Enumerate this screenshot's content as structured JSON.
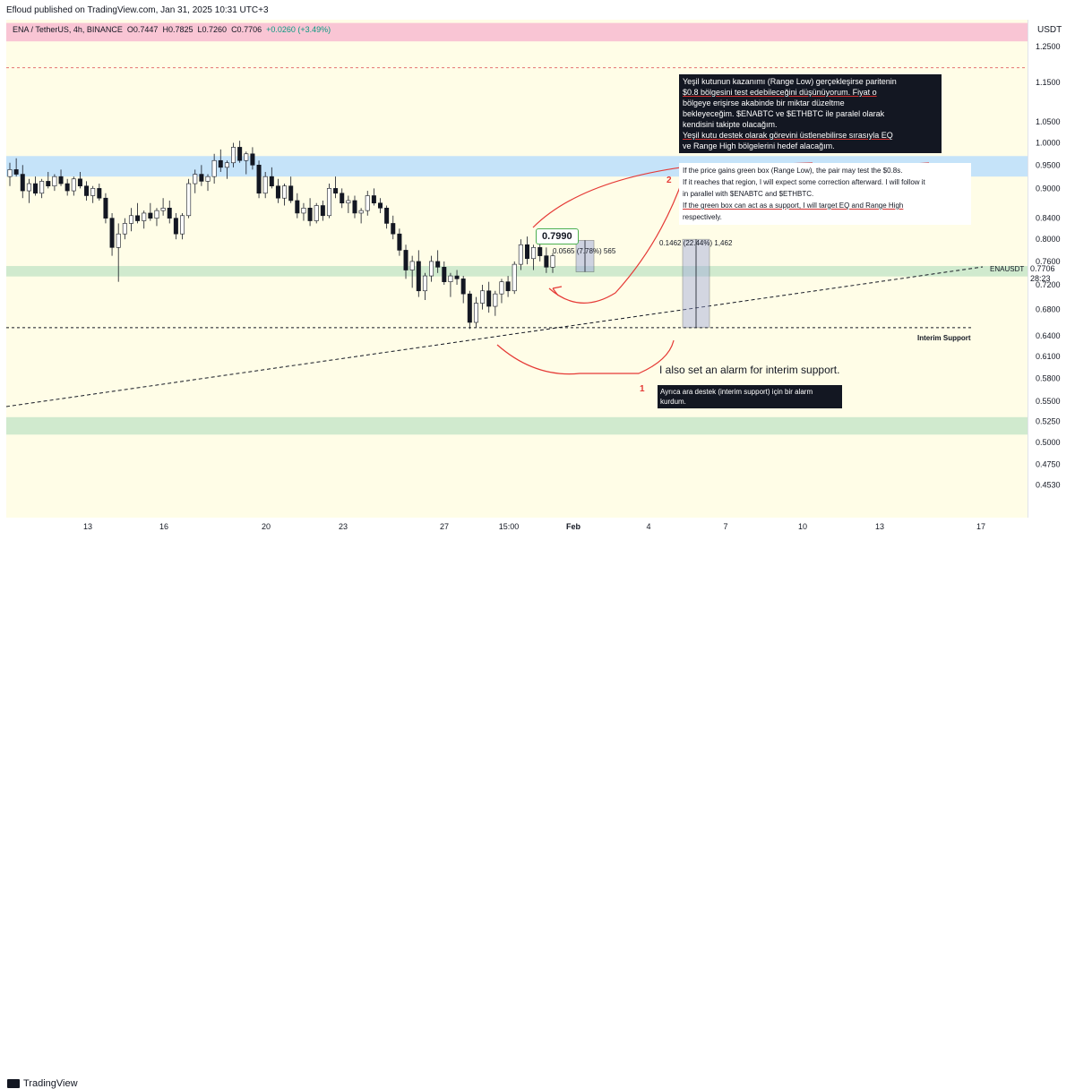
{
  "header": {
    "published": "Efloud published on TradingView.com, Jan 31, 2025 10:31 UTC+3"
  },
  "footer": {
    "brand": "TradingView"
  },
  "ohlc": {
    "symbol": "ENA / TetherUS, 4h, BINANCE",
    "open": "O0.7447",
    "high": "H0.7825",
    "low": "L0.7260",
    "close": "C0.7706",
    "change": "+0.0260 (+3.49%)"
  },
  "axis": {
    "currency": "USDT"
  },
  "colors": {
    "background": "#fffde7",
    "up": "#089981",
    "down": "#131722",
    "blue_zone": "#bbdefb",
    "green_zone": "#c8e6c9",
    "red_zone": "#f8bbd0",
    "annotation": "#e53935"
  },
  "chart_data": {
    "type": "candlestick",
    "symbol": "ENA/USDT",
    "interval": "4h",
    "y_scale": "log",
    "ylim": [
      0.42,
      1.33
    ],
    "y_ticks": [
      "1.2500",
      "1.1500",
      "1.0500",
      "1.0000",
      "0.9500",
      "0.9000",
      "0.8400",
      "0.8000",
      "0.7600",
      "0.7200",
      "0.6800",
      "0.6400",
      "0.6100",
      "0.5800",
      "0.5500",
      "0.5250",
      "0.5000",
      "0.4750",
      "0.4530"
    ],
    "x_ticks": [
      "13",
      "16",
      "20",
      "23",
      "27",
      "15:00",
      "Feb",
      "4",
      "7",
      "10",
      "13",
      "17"
    ],
    "last_price": "0.7706",
    "countdown": "28:23",
    "symbol_label": "ENAUSDT",
    "zones": [
      {
        "name": "resistance",
        "color": "red",
        "low": 1.265,
        "high": 1.32
      },
      {
        "name": "range-high",
        "color": "blue",
        "low": 0.925,
        "high": 0.97
      },
      {
        "name": "range-low",
        "color": "green",
        "low": 0.734,
        "high": 0.752
      },
      {
        "name": "lower-support",
        "color": "green",
        "low": 0.509,
        "high": 0.53
      }
    ],
    "levels": [
      {
        "name": "upper-dashed",
        "value": 1.19
      },
      {
        "name": "interim-support",
        "value": 0.652,
        "label": "Interim Support"
      }
    ],
    "price_tag": "0.7990",
    "measure_small": {
      "text": "0.0565 (7.78%) 565"
    },
    "measure_large": {
      "text": "0.1462 (22.44%) 1,462"
    },
    "ohlc_series": [
      [
        0.925,
        0.955,
        0.905,
        0.94
      ],
      [
        0.94,
        0.965,
        0.925,
        0.93
      ],
      [
        0.93,
        0.95,
        0.88,
        0.895
      ],
      [
        0.895,
        0.92,
        0.87,
        0.91
      ],
      [
        0.91,
        0.925,
        0.885,
        0.89
      ],
      [
        0.89,
        0.92,
        0.88,
        0.915
      ],
      [
        0.915,
        0.935,
        0.9,
        0.905
      ],
      [
        0.905,
        0.93,
        0.895,
        0.925
      ],
      [
        0.925,
        0.94,
        0.905,
        0.91
      ],
      [
        0.91,
        0.92,
        0.885,
        0.895
      ],
      [
        0.895,
        0.925,
        0.885,
        0.92
      ],
      [
        0.92,
        0.935,
        0.9,
        0.905
      ],
      [
        0.905,
        0.915,
        0.875,
        0.885
      ],
      [
        0.885,
        0.905,
        0.87,
        0.9
      ],
      [
        0.9,
        0.91,
        0.875,
        0.88
      ],
      [
        0.88,
        0.89,
        0.83,
        0.84
      ],
      [
        0.84,
        0.85,
        0.77,
        0.785
      ],
      [
        0.785,
        0.83,
        0.725,
        0.81
      ],
      [
        0.81,
        0.84,
        0.8,
        0.83
      ],
      [
        0.83,
        0.86,
        0.815,
        0.845
      ],
      [
        0.845,
        0.87,
        0.83,
        0.835
      ],
      [
        0.835,
        0.855,
        0.82,
        0.85
      ],
      [
        0.85,
        0.87,
        0.835,
        0.84
      ],
      [
        0.84,
        0.86,
        0.825,
        0.855
      ],
      [
        0.855,
        0.88,
        0.845,
        0.86
      ],
      [
        0.86,
        0.875,
        0.83,
        0.84
      ],
      [
        0.84,
        0.85,
        0.8,
        0.81
      ],
      [
        0.81,
        0.85,
        0.8,
        0.845
      ],
      [
        0.845,
        0.92,
        0.84,
        0.91
      ],
      [
        0.91,
        0.94,
        0.89,
        0.93
      ],
      [
        0.93,
        0.95,
        0.905,
        0.915
      ],
      [
        0.915,
        0.93,
        0.895,
        0.925
      ],
      [
        0.925,
        0.975,
        0.91,
        0.96
      ],
      [
        0.96,
        0.985,
        0.935,
        0.945
      ],
      [
        0.945,
        0.96,
        0.92,
        0.955
      ],
      [
        0.955,
        1.0,
        0.945,
        0.99
      ],
      [
        0.99,
        1.005,
        0.955,
        0.96
      ],
      [
        0.96,
        0.98,
        0.93,
        0.975
      ],
      [
        0.975,
        0.99,
        0.94,
        0.95
      ],
      [
        0.95,
        0.96,
        0.88,
        0.89
      ],
      [
        0.89,
        0.935,
        0.88,
        0.925
      ],
      [
        0.925,
        0.945,
        0.9,
        0.905
      ],
      [
        0.905,
        0.92,
        0.87,
        0.88
      ],
      [
        0.88,
        0.91,
        0.865,
        0.905
      ],
      [
        0.905,
        0.925,
        0.87,
        0.875
      ],
      [
        0.875,
        0.89,
        0.84,
        0.85
      ],
      [
        0.85,
        0.87,
        0.835,
        0.86
      ],
      [
        0.86,
        0.88,
        0.825,
        0.835
      ],
      [
        0.835,
        0.87,
        0.83,
        0.865
      ],
      [
        0.865,
        0.875,
        0.835,
        0.845
      ],
      [
        0.845,
        0.91,
        0.84,
        0.9
      ],
      [
        0.9,
        0.925,
        0.88,
        0.89
      ],
      [
        0.89,
        0.9,
        0.86,
        0.87
      ],
      [
        0.87,
        0.885,
        0.85,
        0.875
      ],
      [
        0.875,
        0.885,
        0.84,
        0.85
      ],
      [
        0.85,
        0.86,
        0.83,
        0.855
      ],
      [
        0.855,
        0.895,
        0.845,
        0.885
      ],
      [
        0.885,
        0.9,
        0.865,
        0.87
      ],
      [
        0.87,
        0.88,
        0.85,
        0.86
      ],
      [
        0.86,
        0.865,
        0.82,
        0.83
      ],
      [
        0.83,
        0.845,
        0.8,
        0.81
      ],
      [
        0.81,
        0.82,
        0.77,
        0.78
      ],
      [
        0.78,
        0.79,
        0.73,
        0.745
      ],
      [
        0.745,
        0.77,
        0.715,
        0.76
      ],
      [
        0.76,
        0.78,
        0.7,
        0.71
      ],
      [
        0.71,
        0.74,
        0.695,
        0.735
      ],
      [
        0.735,
        0.77,
        0.725,
        0.76
      ],
      [
        0.76,
        0.78,
        0.74,
        0.75
      ],
      [
        0.75,
        0.76,
        0.72,
        0.725
      ],
      [
        0.725,
        0.74,
        0.7,
        0.735
      ],
      [
        0.735,
        0.745,
        0.72,
        0.73
      ],
      [
        0.73,
        0.735,
        0.69,
        0.705
      ],
      [
        0.705,
        0.71,
        0.65,
        0.66
      ],
      [
        0.66,
        0.7,
        0.652,
        0.69
      ],
      [
        0.69,
        0.72,
        0.68,
        0.71
      ],
      [
        0.71,
        0.725,
        0.675,
        0.685
      ],
      [
        0.685,
        0.71,
        0.67,
        0.705
      ],
      [
        0.705,
        0.73,
        0.69,
        0.725
      ],
      [
        0.725,
        0.735,
        0.7,
        0.71
      ],
      [
        0.71,
        0.76,
        0.705,
        0.755
      ],
      [
        0.755,
        0.8,
        0.745,
        0.79
      ],
      [
        0.79,
        0.805,
        0.755,
        0.765
      ],
      [
        0.765,
        0.79,
        0.745,
        0.785
      ],
      [
        0.785,
        0.8,
        0.76,
        0.77
      ],
      [
        0.77,
        0.785,
        0.74,
        0.75
      ],
      [
        0.75,
        0.775,
        0.74,
        0.77
      ]
    ]
  },
  "annotations": {
    "tr_lines": [
      "Yeşil kutunun kazanımı (Range Low) gerçekleşirse paritenin",
      "$0.8 bölgesini test edebileceğini düşünüyorum. Fiyat o",
      "bölgeye erişirse akabinde bir miktar düzeltme",
      "bekleyeceğim. $ENABTC ve $ETHBTC ile paralel olarak",
      "kendisini takipte olacağım.",
      "Yeşil kutu destek olarak görevini üstlenebilirse sırasıyla EQ",
      "ve Range High bölgelerini hedef alacağım."
    ],
    "en_lines": [
      "If the price gains green box (Range Low), the pair may test the $0.8s.",
      "If it reaches that region, I will expect some correction afterward. I will follow it",
      "in parallel with $ENABTC and $ETHBTC.",
      "If the green box can act as a support, I will target EQ and Range High",
      "respectively."
    ],
    "alarm_en": "I also set an alarm for interim support.",
    "alarm_tr": "Ayrıca ara destek (interim support) için bir alarm kurdum.",
    "marker_1": "1",
    "marker_2": "2"
  }
}
